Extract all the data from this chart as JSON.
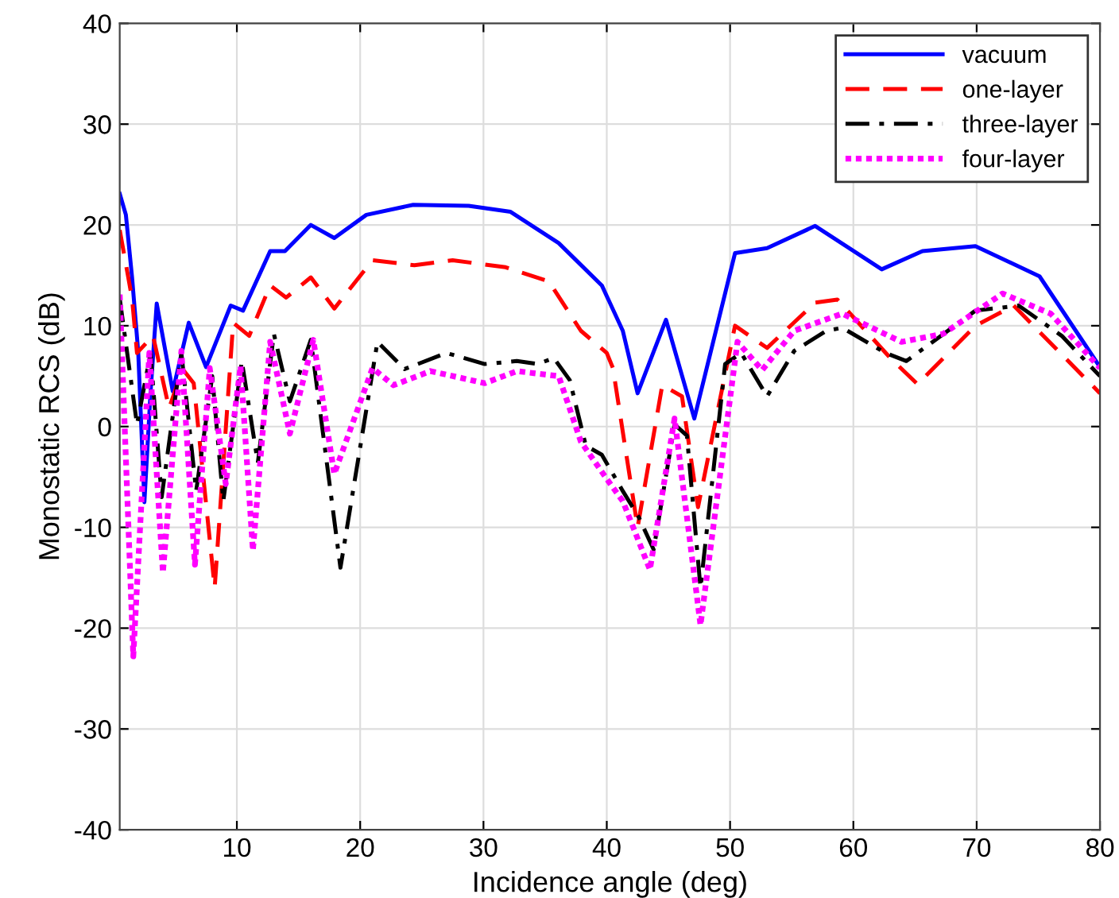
{
  "chart_data": {
    "type": "line",
    "xlabel": "Incidence angle (deg)",
    "ylabel": "Monostatic RCS (dB)",
    "xlim": [
      0.5,
      80
    ],
    "ylim": [
      -40,
      40
    ],
    "xticks": [
      10,
      20,
      30,
      40,
      50,
      60,
      70,
      80
    ],
    "yticks": [
      -40,
      -30,
      -20,
      -10,
      0,
      10,
      20,
      30,
      40
    ],
    "grid": true,
    "legend": "top right",
    "series": [
      {
        "name": "vacuum",
        "color": "#0000ff",
        "line_style": "solid",
        "x": [
          0.5,
          1,
          1.5,
          2,
          2.5,
          3,
          3.5,
          4.8,
          6.1,
          7.5,
          9.5,
          10.5,
          12.7,
          13.9,
          16,
          17.9,
          20.5,
          24.3,
          28.8,
          32.2,
          36.1,
          39.6,
          41.3,
          42.5,
          44.8,
          47.1,
          50.4,
          53,
          56.9,
          62.3,
          65.6,
          69.9,
          75.1,
          80
        ],
        "values": [
          23.1,
          21,
          14.8,
          7.4,
          -7.5,
          3.4,
          12.2,
          3.5,
          10.3,
          5.9,
          12,
          11.5,
          17.4,
          17.4,
          20,
          18.7,
          21,
          22,
          21.9,
          21.3,
          18.2,
          14,
          9.5,
          3.3,
          10.6,
          0.8,
          17.2,
          17.7,
          19.9,
          15.6,
          17.4,
          17.9,
          14.9,
          5.9
        ]
      },
      {
        "name": "one-layer",
        "color": "#ff0000",
        "line_style": "dashed",
        "x": [
          0.5,
          1.5,
          1.9,
          3.2,
          4.5,
          5.6,
          6.5,
          8.2,
          9.7,
          11,
          12.7,
          14,
          16,
          17.9,
          21,
          24.4,
          27.5,
          31.8,
          35.3,
          37.9,
          40,
          40.5,
          42.5,
          44.5,
          46.1,
          47.4,
          50.4,
          53,
          56.9,
          58.7,
          63,
          65.2,
          69.9,
          73,
          80
        ],
        "values": [
          19.5,
          12.7,
          7.3,
          9,
          1.8,
          5.7,
          4.3,
          -16,
          10.3,
          9,
          14,
          12.8,
          14.8,
          11.7,
          16.5,
          16,
          16.5,
          15.8,
          14.4,
          9.5,
          7.3,
          5.8,
          -10,
          4.1,
          3,
          -8,
          10,
          7.8,
          12.3,
          12.6,
          6.8,
          4.2,
          10,
          12,
          3.3
        ]
      },
      {
        "name": "three-layer",
        "color": "#000000",
        "line_style": "dashdot",
        "x": [
          0.5,
          1.9,
          3,
          3.9,
          5.5,
          6.7,
          8,
          8.9,
          10.4,
          11.7,
          13,
          14.3,
          16,
          18.4,
          21.4,
          23.6,
          27,
          30.1,
          32.7,
          34.4,
          35.7,
          37,
          38.3,
          39.6,
          41.3,
          42.6,
          43.8,
          45.5,
          46.5,
          47.6,
          49.6,
          50.9,
          53,
          55.2,
          57.8,
          59.1,
          62.6,
          64.3,
          69.9,
          73.4,
          76.9,
          80
        ],
        "values": [
          12.7,
          0.2,
          7.3,
          -7,
          7.3,
          -6.4,
          5,
          -7.4,
          6.5,
          -3.6,
          9.2,
          2.5,
          8.6,
          -14,
          8.4,
          5.7,
          7.3,
          6.2,
          6.5,
          6.2,
          6.8,
          4.6,
          -1.9,
          -2.8,
          -6.4,
          -9,
          -12.2,
          0.2,
          -0.9,
          -16,
          6.2,
          7.3,
          3,
          7.5,
          9.5,
          9.8,
          7.3,
          6.5,
          11.5,
          12,
          9,
          5
        ]
      },
      {
        "name": "four-layer",
        "color": "#ff00ff",
        "line_style": "dotted",
        "x": [
          0.5,
          1.6,
          2.9,
          4,
          5.5,
          6.6,
          7.8,
          9.1,
          10.3,
          11.3,
          12.7,
          14.3,
          16.2,
          17.9,
          19.2,
          21,
          22.7,
          25.7,
          30.1,
          32.7,
          36.1,
          37.9,
          40,
          41.3,
          43.5,
          45.5,
          47.6,
          50.6,
          52.6,
          55.2,
          59.1,
          63.9,
          67.3,
          72.1,
          76,
          80
        ],
        "values": [
          13.1,
          -22.8,
          7.3,
          -14.5,
          7.5,
          -13.7,
          5.8,
          -5.7,
          6,
          -12.3,
          8.4,
          -0.7,
          8.6,
          -4.7,
          -0.3,
          5.8,
          4.1,
          5.5,
          4.3,
          5.5,
          5,
          -1.5,
          -5.2,
          -7.4,
          -14.2,
          0.8,
          -19.7,
          8.4,
          5.6,
          9.5,
          11.2,
          8.4,
          9.2,
          13.2,
          11.2,
          5.8
        ]
      }
    ]
  }
}
